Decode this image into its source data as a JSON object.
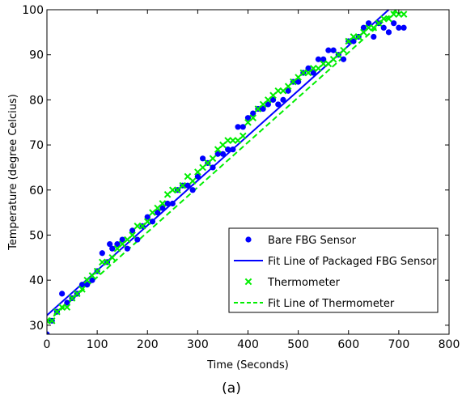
{
  "chart_data": {
    "type": "scatter",
    "caption": "(a)",
    "xlabel": "Time (Seconds)",
    "ylabel": "Temperature (degree Celcius)",
    "xlim": [
      0,
      800
    ],
    "ylim": [
      28,
      100
    ],
    "xticks": [
      0,
      100,
      200,
      300,
      400,
      500,
      600,
      700,
      800
    ],
    "yticks": [
      30,
      40,
      50,
      60,
      70,
      80,
      90,
      100
    ],
    "grid": false,
    "legend_position": "lower-right",
    "series": [
      {
        "name": "Bare FBG Sensor",
        "kind": "scatter",
        "marker": "dot",
        "color": "#0000ff",
        "x": [
          0,
          10,
          20,
          30,
          40,
          50,
          60,
          70,
          80,
          90,
          100,
          110,
          120,
          125,
          130,
          140,
          150,
          160,
          170,
          180,
          190,
          200,
          210,
          220,
          230,
          240,
          250,
          260,
          270,
          280,
          290,
          300,
          310,
          320,
          330,
          340,
          350,
          360,
          370,
          380,
          390,
          400,
          410,
          420,
          430,
          440,
          450,
          460,
          470,
          480,
          490,
          500,
          510,
          520,
          530,
          540,
          550,
          560,
          570,
          580,
          590,
          600,
          610,
          620,
          630,
          640,
          650,
          660,
          670,
          680,
          690,
          700,
          710
        ],
        "y": [
          28,
          31,
          33,
          37,
          35,
          36,
          37,
          39,
          39,
          40,
          42,
          46,
          44,
          48,
          47,
          48,
          49,
          47,
          51,
          49,
          52,
          54,
          53,
          55,
          56,
          57,
          57,
          60,
          61,
          61,
          60,
          63,
          67,
          66,
          65,
          68,
          68,
          69,
          69,
          74,
          74,
          76,
          77,
          78,
          78,
          79,
          80,
          79,
          80,
          82,
          84,
          84,
          86,
          87,
          86,
          89,
          89,
          91,
          91,
          90,
          89,
          93,
          93,
          94,
          96,
          97,
          94,
          97,
          96,
          95,
          97,
          96,
          96
        ]
      },
      {
        "name": "Fit Line of Packaged FBG Sensor",
        "kind": "line",
        "style": "solid",
        "color": "#0000ff",
        "x": [
          0,
          680
        ],
        "y": [
          32.2,
          100
        ]
      },
      {
        "name": "Thermometer",
        "kind": "scatter",
        "marker": "x",
        "color": "#00ee00",
        "x": [
          0,
          10,
          20,
          30,
          40,
          50,
          60,
          70,
          80,
          90,
          100,
          110,
          120,
          130,
          140,
          150,
          160,
          170,
          180,
          190,
          200,
          210,
          220,
          230,
          240,
          250,
          260,
          270,
          280,
          290,
          300,
          310,
          320,
          330,
          340,
          350,
          360,
          370,
          380,
          390,
          400,
          410,
          420,
          430,
          440,
          450,
          460,
          470,
          480,
          490,
          500,
          510,
          520,
          530,
          540,
          550,
          560,
          570,
          580,
          590,
          600,
          610,
          620,
          630,
          640,
          650,
          660,
          670,
          680,
          690,
          700,
          710
        ],
        "y": [
          31,
          31,
          33,
          34,
          34,
          36,
          37,
          38,
          40,
          41,
          42,
          44,
          44,
          45,
          47,
          48,
          49,
          50,
          52,
          52,
          53,
          55,
          56,
          57,
          59,
          60,
          60,
          61,
          63,
          62,
          64,
          65,
          66,
          67,
          69,
          70,
          71,
          71,
          71,
          72,
          75,
          76,
          78,
          79,
          80,
          81,
          82,
          82,
          83,
          84,
          85,
          86,
          86,
          87,
          87,
          88,
          88,
          89,
          90,
          91,
          93,
          94,
          94,
          95,
          96,
          96,
          97,
          98,
          98,
          99,
          99,
          99
        ]
      },
      {
        "name": "Fit Line of Thermometer",
        "kind": "line",
        "style": "dashed",
        "color": "#00ee00",
        "x": [
          0,
          695
        ],
        "y": [
          30.7,
          100
        ]
      }
    ]
  }
}
